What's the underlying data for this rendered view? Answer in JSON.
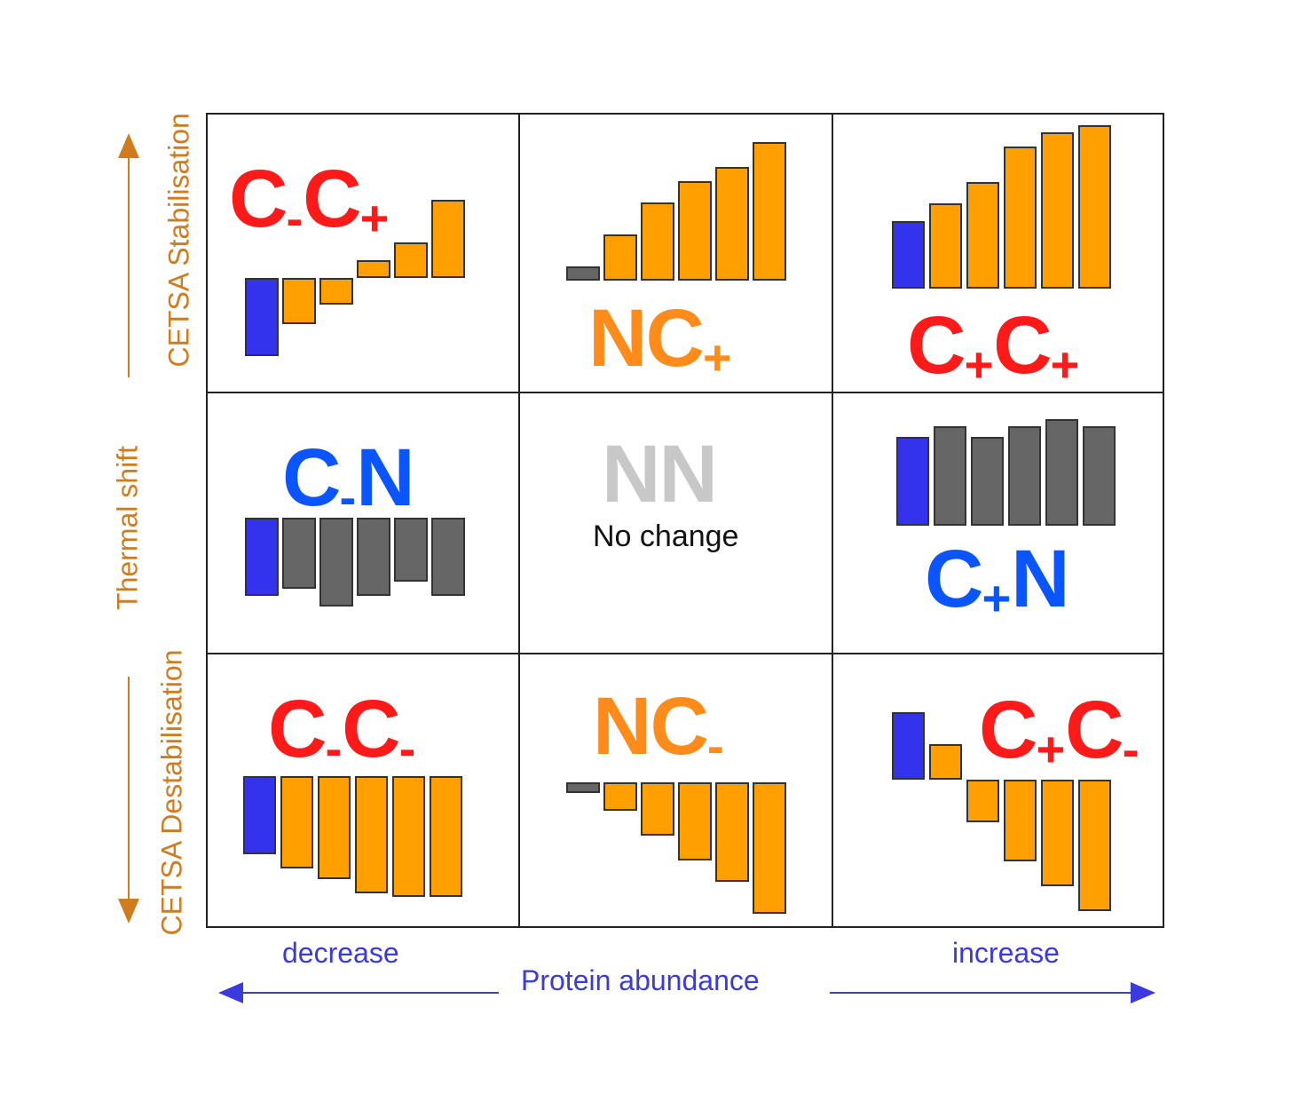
{
  "colors": {
    "red": "#ff1a1a",
    "blue": "#0a55ff",
    "orange": "#ff8c1a",
    "gray_text": "#c8c8c8",
    "bar_blue": "#3333ee",
    "bar_orange": "#ff9f00",
    "bar_gray": "#666666",
    "axis_orange": "#d07c1e",
    "axis_blue": "#3a3ae0"
  },
  "y_axis": {
    "top_label": "CETSA Stabilisation",
    "middle_label": "Thermal shift",
    "bottom_label": "CETSA Destabilisation"
  },
  "x_axis": {
    "left_label": "decrease",
    "center_label": "Protein abundance",
    "right_label": "increase"
  },
  "cells": [
    {
      "id": "tl",
      "code": {
        "main1": "C",
        "sub1": "-",
        "main2": "C",
        "sub2": "+"
      },
      "color": "red"
    },
    {
      "id": "tc",
      "code": {
        "main1": "NC",
        "sub1": "",
        "main2": "",
        "sub2": "+"
      },
      "color": "orange"
    },
    {
      "id": "tr",
      "code": {
        "main1": "C",
        "sub1": "+",
        "main2": "C",
        "sub2": "+"
      },
      "color": "red"
    },
    {
      "id": "ml",
      "code": {
        "main1": "C",
        "sub1": "-",
        "main2": "N",
        "sub2": ""
      },
      "color": "blue"
    },
    {
      "id": "mc",
      "code": {
        "main1": "NN",
        "sub1": "",
        "main2": "",
        "sub2": ""
      },
      "color": "gray_text",
      "note": "No change"
    },
    {
      "id": "mr",
      "code": {
        "main1": "C",
        "sub1": "+",
        "main2": "N",
        "sub2": ""
      },
      "color": "blue"
    },
    {
      "id": "bl",
      "code": {
        "main1": "C",
        "sub1": "-",
        "main2": "C",
        "sub2": "-"
      },
      "color": "red"
    },
    {
      "id": "bc",
      "code": {
        "main1": "NC",
        "sub1": "",
        "main2": "",
        "sub2": "-"
      },
      "color": "orange"
    },
    {
      "id": "br",
      "code": {
        "main1": "C",
        "sub1": "+",
        "main2": "C",
        "sub2": "-"
      },
      "color": "red"
    }
  ],
  "bar_sets": [
    {
      "cell": "tl",
      "colors": [
        "bar_blue",
        "bar_orange",
        "bar_orange",
        "bar_orange",
        "bar_orange",
        "bar_orange"
      ],
      "values": [
        -2.2,
        -1.3,
        -0.75,
        0.5,
        1.0,
        2.2
      ]
    },
    {
      "cell": "tc",
      "colors": [
        "bar_gray",
        "bar_orange",
        "bar_orange",
        "bar_orange",
        "bar_orange",
        "bar_orange"
      ],
      "values": [
        0.4,
        1.3,
        2.2,
        2.8,
        3.2,
        3.9
      ]
    },
    {
      "cell": "tr",
      "colors": [
        "bar_blue",
        "bar_orange",
        "bar_orange",
        "bar_orange",
        "bar_orange",
        "bar_orange"
      ],
      "values": [
        1.9,
        2.4,
        3.0,
        4.0,
        4.4,
        4.6
      ]
    },
    {
      "cell": "ml",
      "colors": [
        "bar_blue",
        "bar_gray",
        "bar_gray",
        "bar_gray",
        "bar_gray",
        "bar_gray"
      ],
      "values": [
        -2.2,
        -2.0,
        -2.5,
        -2.2,
        -1.8,
        -2.2
      ]
    },
    {
      "cell": "mr",
      "colors": [
        "bar_blue",
        "bar_gray",
        "bar_gray",
        "bar_gray",
        "bar_gray",
        "bar_gray"
      ],
      "values": [
        2.5,
        2.8,
        2.5,
        2.8,
        3.0,
        2.8
      ]
    },
    {
      "cell": "bl",
      "colors": [
        "bar_blue",
        "bar_orange",
        "bar_orange",
        "bar_orange",
        "bar_orange",
        "bar_orange"
      ],
      "values": [
        -2.2,
        -2.6,
        -2.9,
        -3.3,
        -3.4,
        -3.4
      ]
    },
    {
      "cell": "bc",
      "colors": [
        "bar_gray",
        "bar_orange",
        "bar_orange",
        "bar_orange",
        "bar_orange",
        "bar_orange"
      ],
      "values": [
        -0.3,
        -0.8,
        -1.5,
        -2.2,
        -2.8,
        -3.7
      ]
    },
    {
      "cell": "br",
      "colors": [
        "bar_blue",
        "bar_orange",
        "bar_orange",
        "bar_orange",
        "bar_orange",
        "bar_orange"
      ],
      "values": [
        1.9,
        1.0,
        -1.2,
        -2.3,
        -3.0,
        -3.7
      ]
    }
  ]
}
